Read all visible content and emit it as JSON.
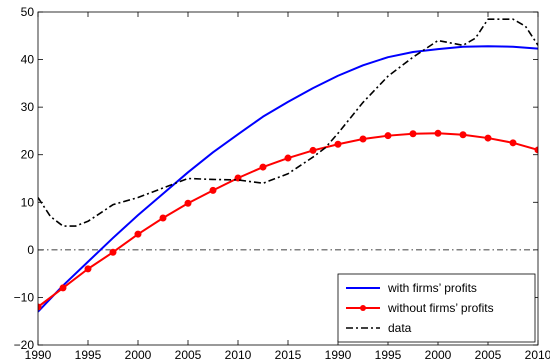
{
  "chart_data": {
    "type": "line",
    "title": "",
    "xlabel": "",
    "ylabel": "",
    "x_tick_labels": [
      "1990",
      "1995",
      "2000",
      "2005",
      "2010",
      "2015",
      "1990",
      "1995",
      "2000",
      "2005",
      "2010"
    ],
    "y_ticks": [
      -20,
      -10,
      0,
      10,
      20,
      30,
      40,
      50
    ],
    "y_tick_labels": [
      "−20",
      "−10",
      "0",
      "10",
      "20",
      "30",
      "40",
      "50"
    ],
    "xlim": [
      0,
      100
    ],
    "ylim": [
      -20,
      50
    ],
    "grid": false,
    "legend_position": "bottom-right",
    "reference_line": {
      "y": 0,
      "style": "dash-dot",
      "color": "#000000"
    },
    "series": [
      {
        "name": "with firms’ profits",
        "color": "#0000ff",
        "style": "solid",
        "markers": false,
        "x": [
          0,
          5,
          10,
          15,
          20,
          25,
          30,
          35,
          40,
          45,
          50,
          55,
          60,
          65,
          70,
          75,
          80,
          85,
          90,
          95,
          100
        ],
        "y": [
          -13,
          -7.5,
          -2.5,
          2.5,
          7.3,
          11.8,
          16.3,
          20.5,
          24.3,
          28,
          31.1,
          34,
          36.6,
          38.8,
          40.5,
          41.6,
          42.2,
          42.7,
          42.8,
          42.7,
          42.3
        ]
      },
      {
        "name": "without firms’ profits",
        "color": "#ff0000",
        "style": "solid",
        "markers": true,
        "x": [
          0,
          5,
          10,
          15,
          20,
          25,
          30,
          35,
          40,
          45,
          50,
          55,
          60,
          65,
          70,
          75,
          80,
          85,
          90,
          95,
          100
        ],
        "y": [
          -12,
          -8,
          -4,
          -0.5,
          3.3,
          6.7,
          9.8,
          12.5,
          15.1,
          17.4,
          19.3,
          20.9,
          22.2,
          23.3,
          24,
          24.4,
          24.5,
          24.2,
          23.5,
          22.5,
          21
        ]
      },
      {
        "name": "data",
        "color": "#000000",
        "style": "dash-dot",
        "markers": false,
        "x": [
          0,
          2.5,
          5,
          7.5,
          10,
          15,
          20,
          25,
          30,
          35,
          40,
          45,
          50,
          55,
          57.5,
          60,
          65,
          70,
          72.5,
          75,
          80,
          85,
          87.5,
          90,
          92.5,
          95,
          97.5,
          100
        ],
        "y": [
          11,
          7,
          5,
          5,
          6,
          9.5,
          11,
          13,
          15,
          14.8,
          14.7,
          14,
          16,
          19.5,
          21.5,
          24.5,
          31,
          36.5,
          38.5,
          40.5,
          44,
          43,
          44.5,
          48.5,
          48.5,
          48.5,
          47,
          43
        ]
      }
    ]
  }
}
